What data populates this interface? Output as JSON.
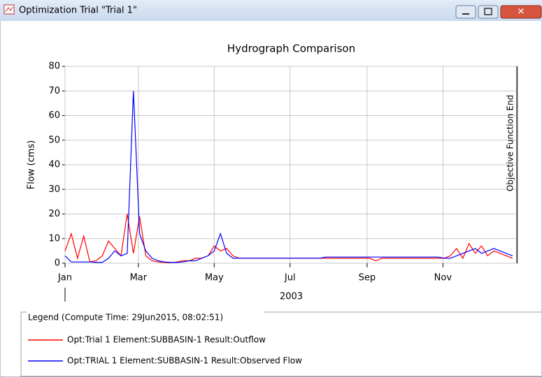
{
  "window": {
    "title": "Optimization Trial \"Trial 1\""
  },
  "legend_title": "Legend (Compute Time: 29Jun2015, 08:02:51)",
  "chart_data": {
    "type": "line",
    "title": "Hydrograph Comparison",
    "ylabel": "Flow (cms)",
    "xlabel": "2003",
    "annotation": {
      "text": "Objective Function End",
      "x": "2003-12-31"
    },
    "x": [
      "2003-01-01",
      "2003-01-06",
      "2003-01-11",
      "2003-01-16",
      "2003-01-21",
      "2003-01-26",
      "2003-01-31",
      "2003-02-05",
      "2003-02-10",
      "2003-02-15",
      "2003-02-20",
      "2003-02-25",
      "2003-03-02",
      "2003-03-07",
      "2003-03-12",
      "2003-03-17",
      "2003-03-22",
      "2003-03-27",
      "2003-04-01",
      "2003-04-06",
      "2003-04-11",
      "2003-04-16",
      "2003-04-21",
      "2003-04-26",
      "2003-05-01",
      "2003-05-06",
      "2003-05-11",
      "2003-05-16",
      "2003-05-21",
      "2003-05-26",
      "2003-05-31",
      "2003-06-05",
      "2003-06-10",
      "2003-06-15",
      "2003-06-20",
      "2003-06-25",
      "2003-06-30",
      "2003-07-05",
      "2003-07-10",
      "2003-07-15",
      "2003-07-20",
      "2003-07-25",
      "2003-07-30",
      "2003-08-04",
      "2003-08-09",
      "2003-08-14",
      "2003-08-19",
      "2003-08-24",
      "2003-08-29",
      "2003-09-03",
      "2003-09-08",
      "2003-09-13",
      "2003-09-18",
      "2003-09-23",
      "2003-09-28",
      "2003-10-03",
      "2003-10-08",
      "2003-10-13",
      "2003-10-18",
      "2003-10-23",
      "2003-10-28",
      "2003-11-02",
      "2003-11-07",
      "2003-11-12",
      "2003-11-17",
      "2003-11-22",
      "2003-11-27",
      "2003-12-02",
      "2003-12-07",
      "2003-12-12",
      "2003-12-17",
      "2003-12-22",
      "2003-12-27"
    ],
    "series": [
      {
        "name": "Opt:Trial 1 Element:SUBBASIN-1 Result:Outflow",
        "color": "#ff0000",
        "values": [
          5,
          12,
          2,
          11,
          0.5,
          1,
          3,
          9,
          6,
          3,
          20,
          4,
          19,
          3,
          1,
          0.5,
          0.3,
          0.2,
          0.5,
          1,
          1,
          2,
          2,
          3,
          7,
          5,
          6,
          3,
          2,
          2,
          2,
          2,
          2,
          2,
          2,
          2,
          2,
          2,
          2,
          2,
          2,
          2,
          2,
          2,
          2,
          2,
          2,
          2,
          2,
          2,
          1,
          2,
          2,
          2,
          2,
          2,
          2,
          2,
          2,
          2,
          2,
          2,
          3,
          6,
          2,
          8,
          4,
          7,
          3,
          5,
          4,
          3,
          2
        ]
      },
      {
        "name": "Opt:TRIAL 1 Element:SUBBASIN-1 Result:Observed Flow",
        "color": "#0000ff",
        "values": [
          3,
          0.5,
          0.5,
          0.5,
          0.5,
          0.3,
          0.3,
          2,
          5,
          3,
          4,
          70,
          12,
          5,
          2,
          1,
          0.5,
          0.3,
          0.3,
          0.5,
          1,
          1,
          2,
          3,
          5,
          12,
          4,
          2,
          2,
          2,
          2,
          2,
          2,
          2,
          2,
          2,
          2,
          2,
          2,
          2,
          2,
          2,
          2.5,
          2.5,
          2.5,
          2.5,
          2.5,
          2.5,
          2.5,
          2.5,
          2.5,
          2.5,
          2.5,
          2.5,
          2.5,
          2.5,
          2.5,
          2.5,
          2.5,
          2.5,
          2.5,
          2,
          2,
          3,
          4,
          5,
          6,
          4,
          5,
          6,
          5,
          4,
          3
        ]
      }
    ],
    "xlim": [
      "2003-01-01",
      "2003-12-31"
    ],
    "xticks": [
      {
        "value": "2003-01-01",
        "label": "Jan"
      },
      {
        "value": "2003-03-01",
        "label": "Mar"
      },
      {
        "value": "2003-05-01",
        "label": "May"
      },
      {
        "value": "2003-07-01",
        "label": "Jul"
      },
      {
        "value": "2003-09-01",
        "label": "Sep"
      },
      {
        "value": "2003-11-01",
        "label": "Nov"
      }
    ],
    "ylim": [
      0,
      80
    ],
    "yticks": [
      0,
      10,
      20,
      30,
      40,
      50,
      60,
      70,
      80
    ],
    "grid": true
  }
}
